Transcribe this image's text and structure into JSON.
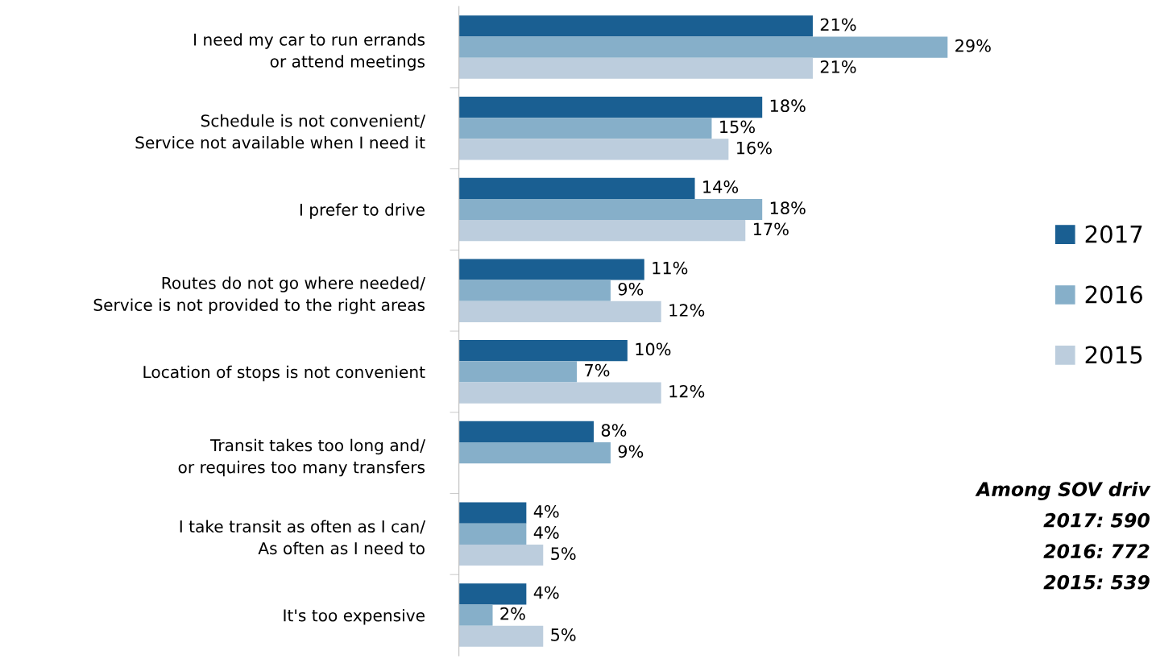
{
  "chart_data": {
    "type": "bar",
    "orientation": "horizontal",
    "tick_labels": "y",
    "grid": false,
    "legend": "right",
    "categories": [
      "I need my car to run errands\nor attend meetings",
      "Schedule is not convenient/\nService not available when I need it",
      "I prefer to drive",
      "Routes do not go where needed/\nService is not provided to the right areas",
      "Location of stops is not convenient",
      "Transit takes too long and/\nor requires too many transfers",
      "I take transit as often as I can/\nAs often as I need to",
      "It's too expensive"
    ],
    "series": [
      {
        "name": "2017",
        "color": "#1a5f92",
        "values": [
          21,
          18,
          14,
          11,
          10,
          8,
          4,
          4
        ],
        "value_labels": [
          "21%",
          "18%",
          "14%",
          "11%",
          "10%",
          "8%",
          "4%",
          "4%"
        ]
      },
      {
        "name": "2016",
        "color": "#86afc9",
        "values": [
          29,
          15,
          18,
          9,
          7,
          9,
          4,
          2
        ],
        "value_labels": [
          "29%",
          "15%",
          "18%",
          "9%",
          "7%",
          "9%",
          "4%",
          "2%"
        ]
      },
      {
        "name": "2015",
        "color": "#bccddd",
        "values": [
          21,
          16,
          17,
          12,
          12,
          null,
          5,
          5
        ],
        "value_labels": [
          "21%",
          "16%",
          "17%",
          "12%",
          "12%",
          null,
          "5%",
          "5%"
        ]
      }
    ],
    "annotations": [
      "Among SOV driv",
      "2017: 590",
      "2016: 772",
      "2015: 539"
    ]
  }
}
